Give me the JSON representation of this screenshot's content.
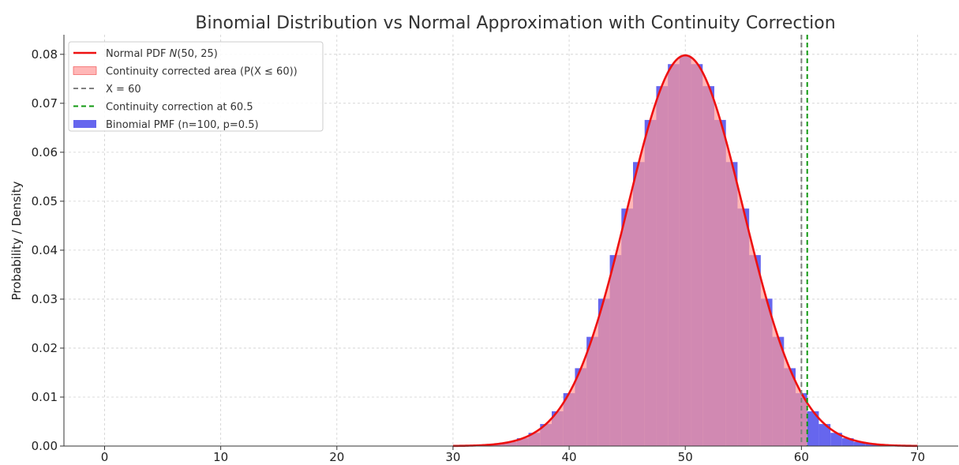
{
  "chart_data": {
    "type": "bar",
    "title": "Binomial Distribution vs Normal Approximation with Continuity Correction",
    "xlabel": "",
    "ylabel": "Probability / Density",
    "xlim": [
      -3.5,
      73.5
    ],
    "ylim": [
      0,
      0.084
    ],
    "xticks": [
      0,
      10,
      20,
      30,
      40,
      50,
      60,
      70
    ],
    "yticks": [
      0.0,
      0.01,
      0.02,
      0.03,
      0.04,
      0.05,
      0.06,
      0.07,
      0.08
    ],
    "xtick_labels": [
      "0",
      "10",
      "20",
      "30",
      "40",
      "50",
      "60",
      "70"
    ],
    "ytick_labels": [
      "0.00",
      "0.01",
      "0.02",
      "0.03",
      "0.04",
      "0.05",
      "0.06",
      "0.07",
      "0.08"
    ],
    "grid": true,
    "legend_placement": "top-left",
    "series": [
      {
        "name": "Binomial PMF (n=100, p=0.5)",
        "kind": "bar",
        "color": "#6666ee",
        "n": 100,
        "p": 0.5,
        "x": [
          30,
          31,
          32,
          33,
          34,
          35,
          36,
          37,
          38,
          39,
          40,
          41,
          42,
          43,
          44,
          45,
          46,
          47,
          48,
          49,
          50,
          51,
          52,
          53,
          54,
          55,
          56,
          57,
          58,
          59,
          60,
          61,
          62,
          63,
          64,
          65,
          66,
          67,
          68,
          69,
          70
        ],
        "values": [
          2e-05,
          4e-05,
          0.00011,
          0.00023,
          0.00046,
          0.00086,
          0.0016,
          0.0027,
          0.0045,
          0.0071,
          0.0108,
          0.0159,
          0.0223,
          0.0301,
          0.039,
          0.0485,
          0.058,
          0.0666,
          0.0735,
          0.078,
          0.0796,
          0.078,
          0.0735,
          0.0666,
          0.058,
          0.0485,
          0.039,
          0.0301,
          0.0223,
          0.0159,
          0.0108,
          0.0071,
          0.0045,
          0.0027,
          0.0016,
          0.00086,
          0.00046,
          0.00023,
          0.00011,
          4e-05,
          2e-05
        ]
      },
      {
        "name": "Continuity corrected area (P(X ≤ 60))",
        "kind": "fill",
        "color": "#ff9999",
        "upper": 60.5
      },
      {
        "name": "Normal PDF N(50, 25)",
        "name_parts": [
          "Normal PDF ",
          "N",
          "(50, 25)"
        ],
        "kind": "line",
        "color": "#ee1111",
        "mean": 50,
        "variance": 25,
        "x_range": [
          30,
          70
        ]
      },
      {
        "name": "X = 60",
        "kind": "vline",
        "color": "#808080",
        "x": 60
      },
      {
        "name": "Continuity correction at 60.5",
        "kind": "vline",
        "color": "#119911",
        "x": 60.5
      }
    ]
  }
}
